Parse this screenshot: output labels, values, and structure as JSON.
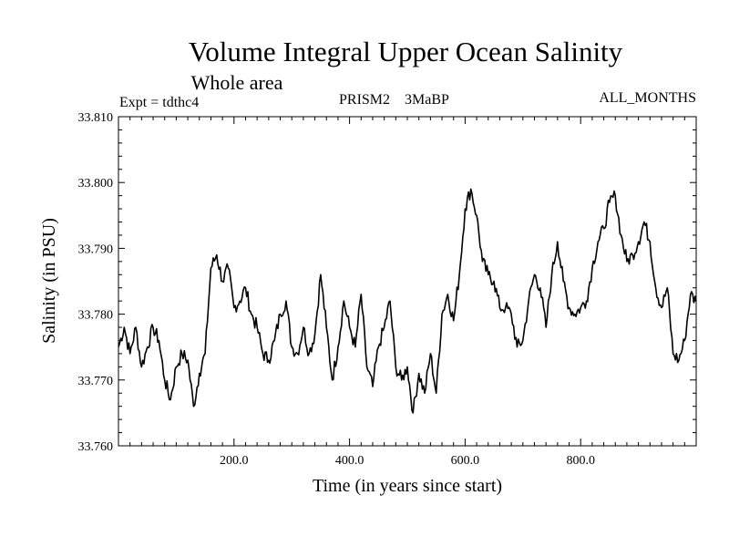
{
  "chart_data": {
    "type": "line",
    "title": "Volume Integral Upper Ocean Salinity",
    "subtitle": "Whole area",
    "header_left": "Expt = tdthc4",
    "header_center": "PRISM2    3MaBP",
    "header_right": "ALL_MONTHS",
    "xlabel": "Time (in years since start)",
    "ylabel": "Salinity (in PSU)",
    "xlim": [
      0,
      1000
    ],
    "ylim": [
      33.76,
      33.81
    ],
    "xticks": [
      {
        "value": 200,
        "label": "200.0"
      },
      {
        "value": 400,
        "label": "400.0"
      },
      {
        "value": 600,
        "label": "600.0"
      },
      {
        "value": 800,
        "label": "800.0"
      }
    ],
    "yticks": [
      {
        "value": 33.76,
        "label": "33.760"
      },
      {
        "value": 33.77,
        "label": "33.770"
      },
      {
        "value": 33.78,
        "label": "33.780"
      },
      {
        "value": 33.79,
        "label": "33.790"
      },
      {
        "value": 33.8,
        "label": "33.800"
      },
      {
        "value": 33.81,
        "label": "33.810"
      }
    ],
    "series": [
      {
        "name": "Salinity",
        "x": [
          0,
          10,
          20,
          30,
          40,
          50,
          60,
          70,
          80,
          90,
          100,
          110,
          120,
          130,
          140,
          150,
          160,
          170,
          180,
          190,
          200,
          210,
          220,
          230,
          240,
          250,
          260,
          270,
          280,
          290,
          300,
          310,
          320,
          330,
          340,
          350,
          360,
          370,
          380,
          390,
          400,
          410,
          420,
          430,
          440,
          450,
          460,
          470,
          480,
          490,
          500,
          510,
          520,
          530,
          540,
          550,
          560,
          570,
          580,
          590,
          600,
          610,
          620,
          630,
          640,
          650,
          660,
          670,
          680,
          690,
          700,
          710,
          720,
          730,
          740,
          750,
          760,
          770,
          780,
          790,
          800,
          810,
          820,
          830,
          840,
          850,
          860,
          870,
          880,
          890,
          900,
          910,
          920,
          930,
          940,
          950,
          960,
          970,
          980,
          990,
          1000
        ],
        "values": [
          33.775,
          33.778,
          33.774,
          33.778,
          33.772,
          33.775,
          33.778,
          33.776,
          33.77,
          33.767,
          33.772,
          33.774,
          33.773,
          33.766,
          33.771,
          33.774,
          33.787,
          33.789,
          33.785,
          33.787,
          33.781,
          33.782,
          33.784,
          33.78,
          33.778,
          33.774,
          33.773,
          33.776,
          33.78,
          33.782,
          33.775,
          33.774,
          33.778,
          33.774,
          33.777,
          33.786,
          33.778,
          33.77,
          33.775,
          33.782,
          33.778,
          33.775,
          33.783,
          33.772,
          33.769,
          33.775,
          33.778,
          33.782,
          33.772,
          33.77,
          33.772,
          33.765,
          33.771,
          33.768,
          33.774,
          33.768,
          33.78,
          33.783,
          33.779,
          33.786,
          33.796,
          33.799,
          33.795,
          33.788,
          33.786,
          33.785,
          33.781,
          33.781,
          33.78,
          33.775,
          33.776,
          33.782,
          33.786,
          33.784,
          33.778,
          33.786,
          33.791,
          33.785,
          33.781,
          33.78,
          33.781,
          33.782,
          33.787,
          33.791,
          33.793,
          33.797,
          33.798,
          33.792,
          33.788,
          33.789,
          33.791,
          33.794,
          33.791,
          33.784,
          33.781,
          33.784,
          33.774,
          33.773,
          33.776,
          33.783,
          33.782
        ]
      }
    ]
  }
}
